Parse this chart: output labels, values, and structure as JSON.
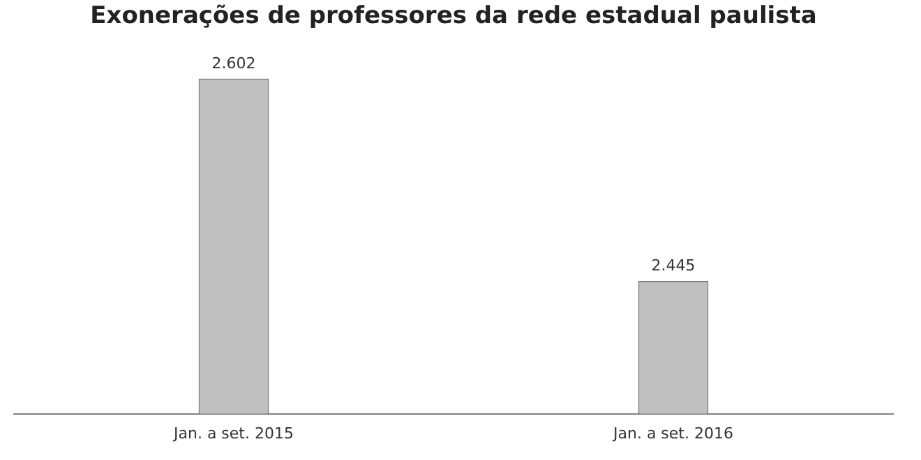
{
  "chart_data": {
    "type": "bar",
    "title": "Exonerações de professores da rede estadual paulista",
    "categories": [
      "Jan. a set. 2015",
      "Jan. a set. 2016"
    ],
    "values": [
      2602,
      2445
    ],
    "value_labels": [
      "2.602",
      "2.445"
    ],
    "color": "#c0c0c0",
    "tick_labels": "x",
    "grid": false,
    "legend": false
  }
}
